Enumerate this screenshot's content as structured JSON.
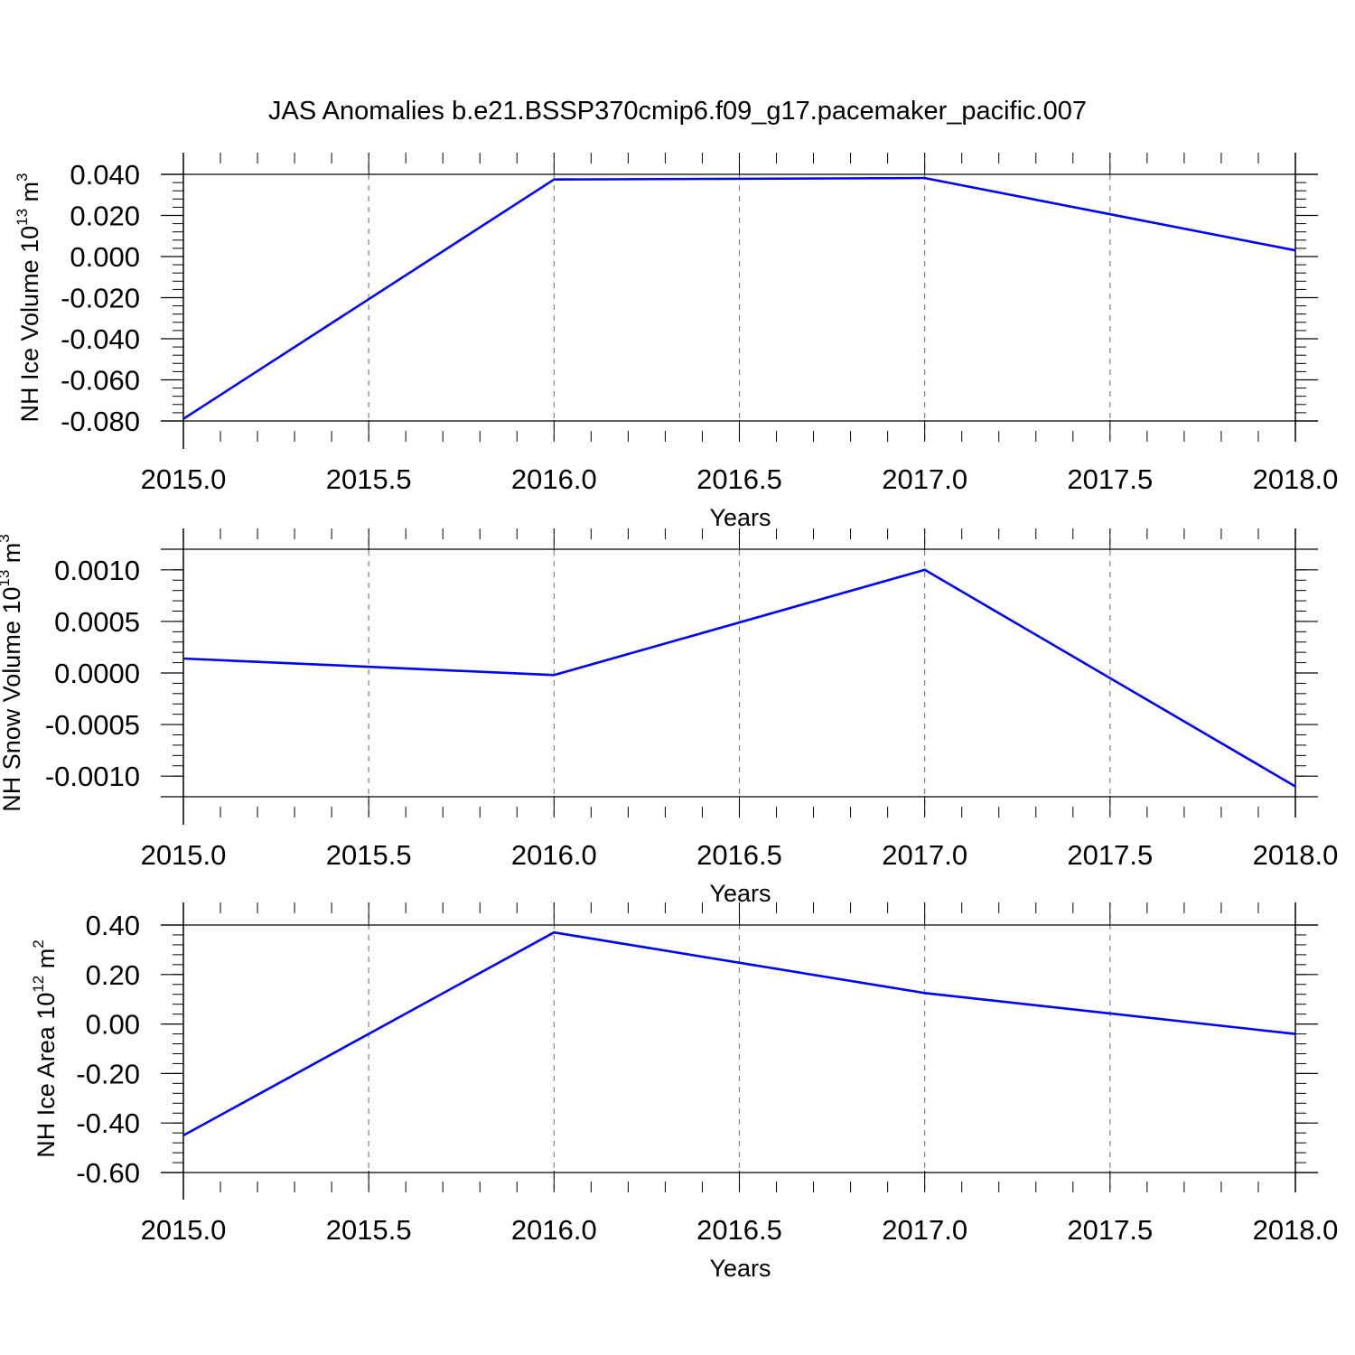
{
  "title": "JAS Anomalies b.e21.BSSP370cmip6.f09_g17.pacemaker_pacific.007",
  "colors": {
    "line": "#0000ff",
    "frame": "#000000",
    "grid": "#808080"
  },
  "chart_data": [
    {
      "type": "line",
      "xlabel": "Years",
      "ylabel": {
        "base": "NH Ice Volume 10",
        "sup": "13",
        "unit": " m",
        "unit_sup": "3"
      },
      "xlim": [
        2015.0,
        2018.0
      ],
      "ylim": [
        -0.08,
        0.04
      ],
      "xticks": [
        "2015.0",
        "2015.5",
        "2016.0",
        "2016.5",
        "2017.0",
        "2017.5",
        "2018.0"
      ],
      "yticks": [
        "0.040",
        "0.020",
        "0.000",
        "-0.020",
        "-0.040",
        "-0.060",
        "-0.080"
      ],
      "ytick_values": [
        0.04,
        0.02,
        0.0,
        -0.02,
        -0.04,
        -0.06,
        -0.08
      ],
      "grid": "x-dashed",
      "series": [
        {
          "x": [
            2015,
            2016,
            2017,
            2018
          ],
          "values": [
            -0.079,
            0.0375,
            0.0382,
            0.003
          ]
        }
      ]
    },
    {
      "type": "line",
      "xlabel": "Years",
      "ylabel": {
        "base": "NH Snow Volume 10",
        "sup": "13",
        "unit": " m",
        "unit_sup": "3"
      },
      "xlim": [
        2015.0,
        2018.0
      ],
      "ylim": [
        -0.0012,
        0.0012
      ],
      "xticks": [
        "2015.0",
        "2015.5",
        "2016.0",
        "2016.5",
        "2017.0",
        "2017.5",
        "2018.0"
      ],
      "yticks": [
        "0.0010",
        "0.0005",
        "0.0000",
        "-0.0005",
        "-0.0010"
      ],
      "ytick_values": [
        0.001,
        0.0005,
        0.0,
        -0.0005,
        -0.001
      ],
      "grid": "x-dashed",
      "series": [
        {
          "x": [
            2015,
            2016,
            2017,
            2018
          ],
          "values": [
            0.00014,
            -2e-05,
            0.001,
            -0.0011
          ]
        }
      ]
    },
    {
      "type": "line",
      "xlabel": "Years",
      "ylabel": {
        "base": "NH Ice Area 10",
        "sup": "12",
        "unit": " m",
        "unit_sup": "2"
      },
      "xlim": [
        2015.0,
        2018.0
      ],
      "ylim": [
        -0.6,
        0.4
      ],
      "xticks": [
        "2015.0",
        "2015.5",
        "2016.0",
        "2016.5",
        "2017.0",
        "2017.5",
        "2018.0"
      ],
      "yticks": [
        "0.40",
        "0.20",
        "0.00",
        "-0.20",
        "-0.40",
        "-0.60"
      ],
      "ytick_values": [
        0.4,
        0.2,
        0.0,
        -0.2,
        -0.4,
        -0.6
      ],
      "grid": "x-dashed",
      "series": [
        {
          "x": [
            2015,
            2016,
            2017,
            2018
          ],
          "values": [
            -0.45,
            0.37,
            0.125,
            -0.04
          ]
        }
      ]
    }
  ]
}
